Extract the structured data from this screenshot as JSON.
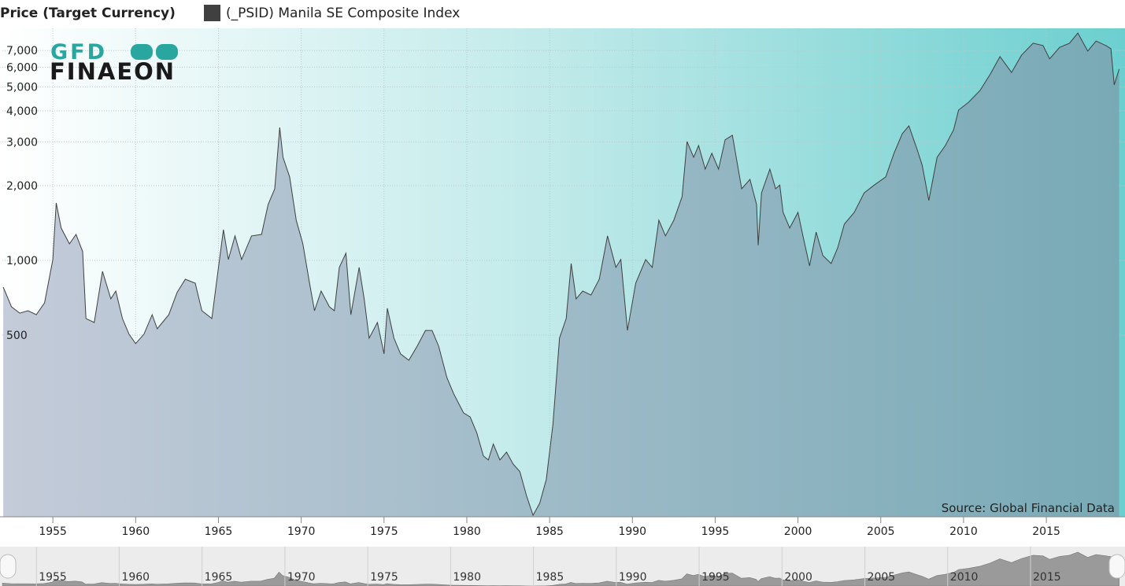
{
  "chart_data": {
    "type": "area",
    "title": "Price (Target Currency)",
    "source": "Source: Global Financial Data",
    "logo_top": "GFD",
    "logo_bottom": "FINAEON",
    "log_scale": true,
    "grid": true,
    "xlim": [
      1951.95,
      2019.75
    ],
    "ylim": [
      92.7,
      8600
    ],
    "xticks": [
      1955,
      1960,
      1965,
      1970,
      1975,
      1980,
      1985,
      1990,
      1995,
      2000,
      2005,
      2010,
      2015
    ],
    "yticks": [
      500,
      {
        "value": 1000,
        "label": "1,000"
      },
      {
        "value": 2000,
        "label": "2,000"
      },
      {
        "value": 3000,
        "label": "3,000"
      },
      {
        "value": 4000,
        "label": "4,000"
      },
      {
        "value": 5000,
        "label": "5,000"
      },
      {
        "value": 6000,
        "label": "6,000"
      },
      {
        "value": 7000,
        "label": "7,000"
      }
    ],
    "x": [
      1952.0,
      1952.5,
      1953.0,
      1953.5,
      1954.0,
      1954.5,
      1955.0,
      1955.2,
      1955.5,
      1956.0,
      1956.4,
      1956.8,
      1957.0,
      1957.5,
      1958.0,
      1958.5,
      1958.8,
      1959.2,
      1959.6,
      1960.0,
      1960.5,
      1961.0,
      1961.3,
      1962.0,
      1962.5,
      1963.0,
      1963.6,
      1964.0,
      1964.6,
      1965.0,
      1965.3,
      1965.6,
      1966.0,
      1966.4,
      1967.0,
      1967.6,
      1968.0,
      1968.4,
      1968.7,
      1968.9,
      1969.3,
      1969.7,
      1970.1,
      1970.5,
      1970.8,
      1971.2,
      1971.7,
      1972.0,
      1972.3,
      1972.7,
      1973.0,
      1973.5,
      1973.8,
      1974.1,
      1974.6,
      1975.0,
      1975.2,
      1975.6,
      1976.0,
      1976.5,
      1977.0,
      1977.5,
      1977.9,
      1978.3,
      1978.8,
      1979.2,
      1979.8,
      1980.2,
      1980.6,
      1981.0,
      1981.3,
      1981.6,
      1982.0,
      1982.4,
      1982.8,
      1983.2,
      1983.6,
      1984.0,
      1984.4,
      1984.8,
      1985.2,
      1985.6,
      1986.0,
      1986.3,
      1986.6,
      1987.0,
      1987.5,
      1988.0,
      1988.5,
      1989.0,
      1989.3,
      1989.7,
      1990.2,
      1990.8,
      1991.2,
      1991.6,
      1992.0,
      1992.5,
      1993.0,
      1993.3,
      1993.7,
      1994.0,
      1994.4,
      1994.8,
      1995.2,
      1995.6,
      1996.04,
      1996.6,
      1997.1,
      1997.5,
      1997.6,
      1997.8,
      1998.3,
      1998.65,
      1998.9,
      1999.1,
      1999.5,
      2000.0,
      2000.3,
      2000.7,
      2001.1,
      2001.5,
      2002.0,
      2002.4,
      2002.8,
      2003.4,
      2004.0,
      2004.6,
      2005.3,
      2005.8,
      2006.3,
      2006.7,
      2007.2,
      2007.5,
      2007.9,
      2008.4,
      2008.9,
      2009.4,
      2009.7,
      2010.3,
      2011.0,
      2011.6,
      2012.2,
      2012.9,
      2013.5,
      2014.2,
      2014.8,
      2015.2,
      2015.8,
      2016.4,
      2016.9,
      2017.5,
      2018.0,
      2018.6,
      2018.9,
      2019.1,
      2019.4
    ],
    "series": [
      {
        "name": "(_PSID) Manila SE Composite Index",
        "color": "#404040",
        "values": [
          780,
          650,
          613,
          627,
          604,
          674,
          1007,
          1703,
          1349,
          1165,
          1272,
          1084,
          583,
          562,
          903,
          700,
          752,
          583,
          504,
          462,
          504,
          604,
          530,
          604,
          742,
          839,
          809,
          627,
          583,
          937,
          1329,
          1008,
          1254,
          1008,
          1254,
          1272,
          1679,
          1942,
          3430,
          2600,
          2170,
          1450,
          1165,
          809,
          627,
          752,
          650,
          627,
          937,
          1068,
          604,
          937,
          700,
          486,
          562,
          420,
          641,
          486,
          420,
          396,
          451,
          522,
          522,
          451,
          337,
          291,
          243,
          234,
          202,
          163,
          157,
          182,
          157,
          169,
          151,
          141,
          113,
          94,
          105,
          131,
          218,
          486,
          583,
          971,
          700,
          752,
          725,
          839,
          1254,
          937,
          1008,
          522,
          809,
          1008,
          937,
          1450,
          1254,
          1450,
          1805,
          3010,
          2600,
          2900,
          2330,
          2700,
          2330,
          3060,
          3190,
          1942,
          2120,
          1679,
          1149,
          1870,
          2330,
          1942,
          2010,
          1560,
          1349,
          1560,
          1254,
          950,
          1300,
          1045,
          971,
          1124,
          1399,
          1560,
          1870,
          2010,
          2168,
          2700,
          3235,
          3480,
          2793,
          2416,
          1742,
          2600,
          2900,
          3355,
          4030,
          4330,
          4840,
          5600,
          6620,
          5710,
          6700,
          7490,
          7330,
          6480,
          7210,
          7490,
          8230,
          6960,
          7640,
          7330,
          7120,
          5090,
          5890
        ]
      }
    ]
  }
}
